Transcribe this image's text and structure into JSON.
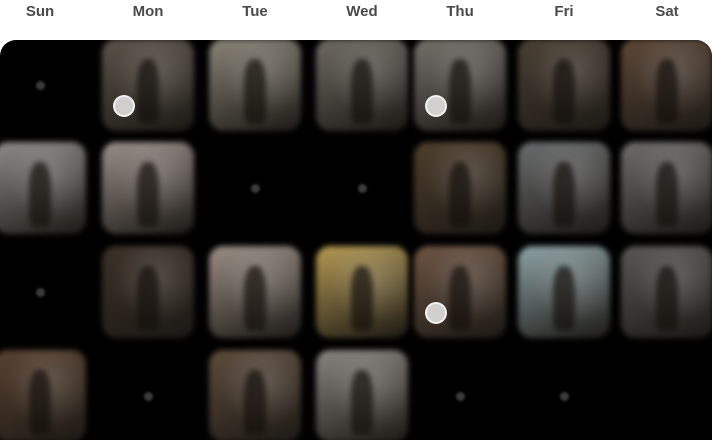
{
  "weekdays": [
    "Sun",
    "Mon",
    "Tue",
    "Wed",
    "Thu",
    "Fri",
    "Sat"
  ],
  "calendar": {
    "rows": [
      [
        {
          "type": "empty"
        },
        {
          "type": "photo",
          "tone": "#5c5349",
          "badge": true
        },
        {
          "type": "photo",
          "tone": "#8a8478",
          "badge": false
        },
        {
          "type": "photo",
          "tone": "#6f6a63",
          "badge": false
        },
        {
          "type": "photo",
          "tone": "#75706a",
          "badge": true
        },
        {
          "type": "photo",
          "tone": "#4b4034",
          "badge": false
        },
        {
          "type": "photo",
          "tone": "#5d4737",
          "badge": false
        }
      ],
      [
        {
          "type": "photo",
          "tone": "#8e8b88",
          "badge": false
        },
        {
          "type": "photo",
          "tone": "#9a8f8a",
          "badge": false
        },
        {
          "type": "empty"
        },
        {
          "type": "empty"
        },
        {
          "type": "photo",
          "tone": "#4f3e2c",
          "badge": false
        },
        {
          "type": "photo",
          "tone": "#6b6d6e",
          "badge": false
        },
        {
          "type": "photo",
          "tone": "#6f6c6b",
          "badge": false
        }
      ],
      [
        {
          "type": "empty"
        },
        {
          "type": "photo",
          "tone": "#3d3128",
          "badge": false
        },
        {
          "type": "photo",
          "tone": "#9b8f86",
          "badge": false
        },
        {
          "type": "photo",
          "tone": "#b59a52",
          "badge": false
        },
        {
          "type": "photo",
          "tone": "#6d5442",
          "badge": true
        },
        {
          "type": "photo",
          "tone": "#8ea3a6",
          "badge": false
        },
        {
          "type": "photo",
          "tone": "#5a5755",
          "badge": false
        }
      ],
      [
        {
          "type": "photo",
          "tone": "#5a4230",
          "badge": false
        },
        {
          "type": "empty"
        },
        {
          "type": "photo",
          "tone": "#5e4c3c",
          "badge": false
        },
        {
          "type": "photo",
          "tone": "#8a8580",
          "badge": false
        },
        {
          "type": "empty"
        },
        {
          "type": "empty"
        },
        {
          "type": "none"
        }
      ]
    ]
  }
}
